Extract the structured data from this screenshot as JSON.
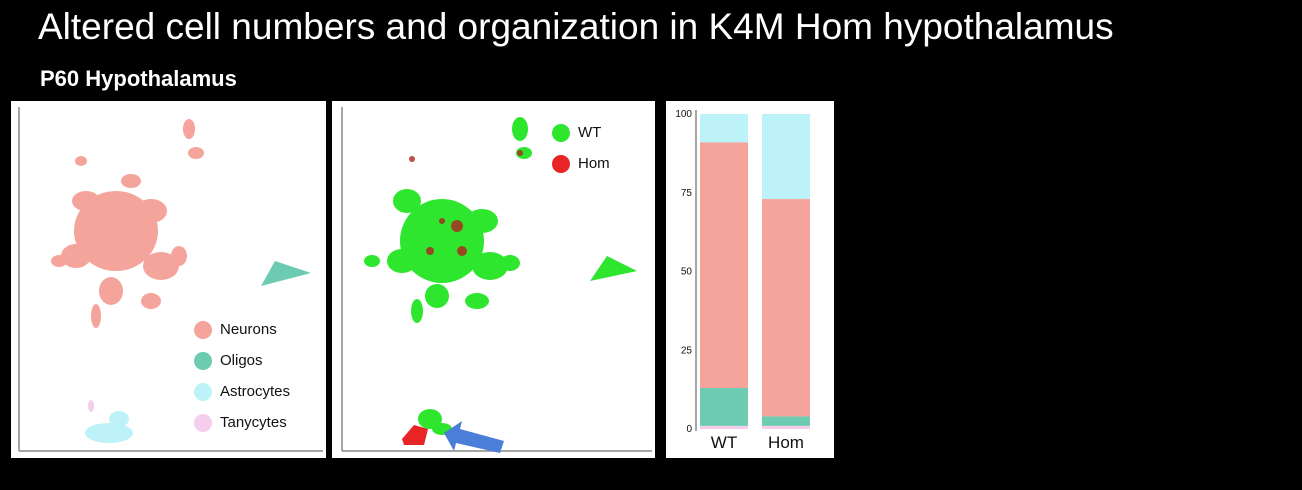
{
  "slide": {
    "title": "Altered cell numbers and organization in K4M Hom hypothalamus",
    "subtitle": "P60 Hypothalamus"
  },
  "legend_celltypes": [
    {
      "label": "Neurons",
      "color": "#f4a49b"
    },
    {
      "label": "Oligos",
      "color": "#6ccbb1"
    },
    {
      "label": "Astrocytes",
      "color": "#bdf3f8"
    },
    {
      "label": "Tanycytes",
      "color": "#f7cdee"
    }
  ],
  "legend_genotype": [
    {
      "label": "WT",
      "color": "#2ee62e"
    },
    {
      "label": "Hom",
      "color": "#e82424"
    }
  ],
  "chart_data": {
    "type": "bar",
    "stacked": true,
    "categories": [
      "WT",
      "Hom"
    ],
    "yticks": [
      "0",
      "25",
      "50",
      "75",
      "100"
    ],
    "ylim": [
      0,
      100
    ],
    "series": [
      {
        "color": "#f7cdee",
        "values": [
          1,
          1
        ]
      },
      {
        "color": "#6ccbb1",
        "values": [
          12,
          3
        ]
      },
      {
        "color": "#f4a49b",
        "values": [
          78,
          69
        ]
      },
      {
        "color": "#bdf3f8",
        "values": [
          9,
          27
        ]
      }
    ]
  },
  "colors": {
    "neurons": "#f4a49b",
    "oligos": "#6ccbb1",
    "astrocytes": "#bdf3f8",
    "tanycytes": "#f7cdee",
    "wt": "#2ee62e",
    "hom": "#e82424",
    "arrow": "#4a7ed8"
  }
}
